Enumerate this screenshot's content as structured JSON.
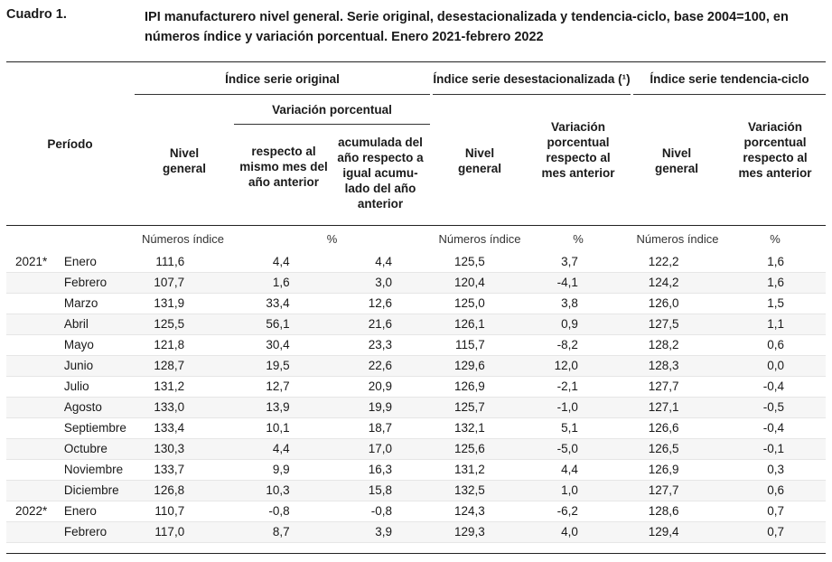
{
  "caption": {
    "label": "Cuadro 1.",
    "title": "IPI manufacturero nivel general. Serie original, desestacionalizada y tendencia-ciclo, base 2004=100, en números índice y variación porcentual. Enero 2021-febrero 2022"
  },
  "headers": {
    "periodo": "Período",
    "serie_original": "Índice serie original",
    "serie_desest": "Índice serie desestacionalizada (¹)",
    "serie_tendencia": "Índice serie tendencia-ciclo",
    "variacion_porcentual": "Variación porcentual",
    "nivel_general": "Nivel general",
    "respecto_mismo_mes": "respecto al mismo mes del año anterior",
    "acumulada": "acumulada del año respecto a igual acumu- lado del año anterior",
    "var_respecto_mes_anterior": "Variación porcentual respecto al mes anterior"
  },
  "units": {
    "numeros_indice": "Números índice",
    "porcentaje": "%"
  },
  "rows": [
    {
      "year": "2021*",
      "month": "Enero",
      "v": [
        "111,6",
        "4,4",
        "4,4",
        "125,5",
        "3,7",
        "122,2",
        "1,6"
      ]
    },
    {
      "year": "",
      "month": "Febrero",
      "v": [
        "107,7",
        "1,6",
        "3,0",
        "120,4",
        "-4,1",
        "124,2",
        "1,6"
      ]
    },
    {
      "year": "",
      "month": "Marzo",
      "v": [
        "131,9",
        "33,4",
        "12,6",
        "125,0",
        "3,8",
        "126,0",
        "1,5"
      ]
    },
    {
      "year": "",
      "month": "Abril",
      "v": [
        "125,5",
        "56,1",
        "21,6",
        "126,1",
        "0,9",
        "127,5",
        "1,1"
      ]
    },
    {
      "year": "",
      "month": "Mayo",
      "v": [
        "121,8",
        "30,4",
        "23,3",
        "115,7",
        "-8,2",
        "128,2",
        "0,6"
      ]
    },
    {
      "year": "",
      "month": "Junio",
      "v": [
        "128,7",
        "19,5",
        "22,6",
        "129,6",
        "12,0",
        "128,3",
        "0,0"
      ]
    },
    {
      "year": "",
      "month": "Julio",
      "v": [
        "131,2",
        "12,7",
        "20,9",
        "126,9",
        "-2,1",
        "127,7",
        "-0,4"
      ]
    },
    {
      "year": "",
      "month": "Agosto",
      "v": [
        "133,0",
        "13,9",
        "19,9",
        "125,7",
        "-1,0",
        "127,1",
        "-0,5"
      ]
    },
    {
      "year": "",
      "month": "Septiembre",
      "v": [
        "133,4",
        "10,1",
        "18,7",
        "132,1",
        "5,1",
        "126,6",
        "-0,4"
      ]
    },
    {
      "year": "",
      "month": "Octubre",
      "v": [
        "130,3",
        "4,4",
        "17,0",
        "125,6",
        "-5,0",
        "126,5",
        "-0,1"
      ]
    },
    {
      "year": "",
      "month": "Noviembre",
      "v": [
        "133,7",
        "9,9",
        "16,3",
        "131,2",
        "4,4",
        "126,9",
        "0,3"
      ]
    },
    {
      "year": "",
      "month": "Diciembre",
      "v": [
        "126,8",
        "10,3",
        "15,8",
        "132,5",
        "1,0",
        "127,7",
        "0,6"
      ]
    },
    {
      "year": "2022*",
      "month": "Enero",
      "v": [
        "110,7",
        "-0,8",
        "-0,8",
        "124,3",
        "-6,2",
        "128,6",
        "0,7"
      ]
    },
    {
      "year": "",
      "month": "Febrero",
      "v": [
        "117,0",
        "8,7",
        "3,9",
        "129,3",
        "4,0",
        "129,4",
        "0,7"
      ]
    }
  ]
}
